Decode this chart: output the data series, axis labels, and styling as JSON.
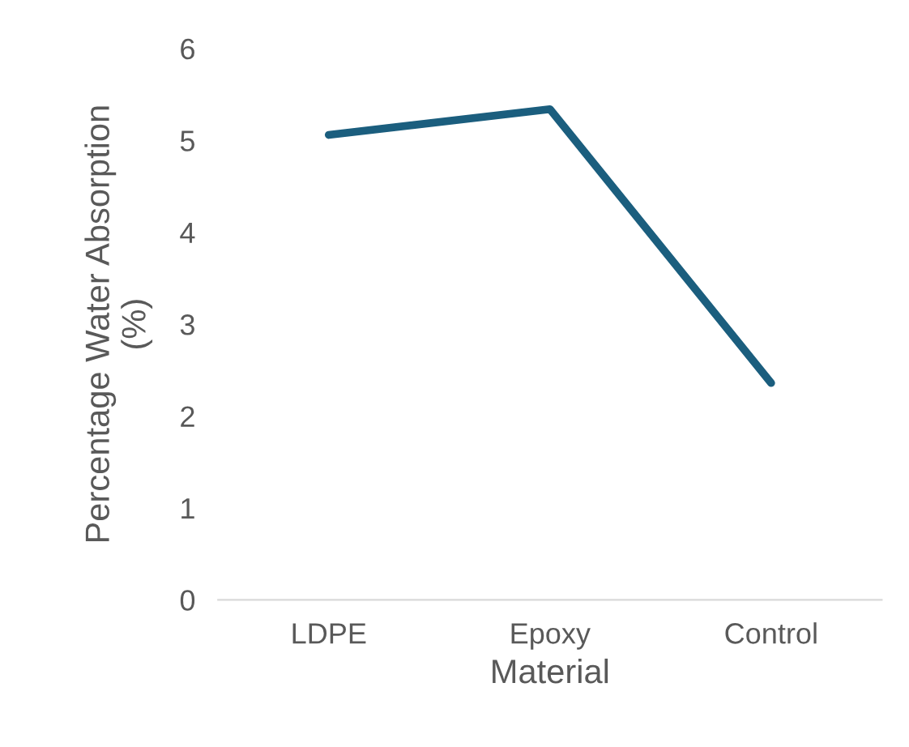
{
  "chart_data": {
    "type": "line",
    "xlabel": "Material",
    "ylabel": "Percentage Water Absorption\n(%)",
    "categories": [
      "LDPE",
      "Epoxy",
      "Control"
    ],
    "series": [
      {
        "color": "#1b5e7e",
        "values": [
          5.06,
          5.34,
          2.36
        ]
      }
    ],
    "ylim": [
      0,
      6
    ],
    "yticks": [
      0,
      1,
      2,
      3,
      4,
      5,
      6
    ],
    "grid": false,
    "legend": false,
    "marker": "none",
    "line_style": "solid"
  }
}
